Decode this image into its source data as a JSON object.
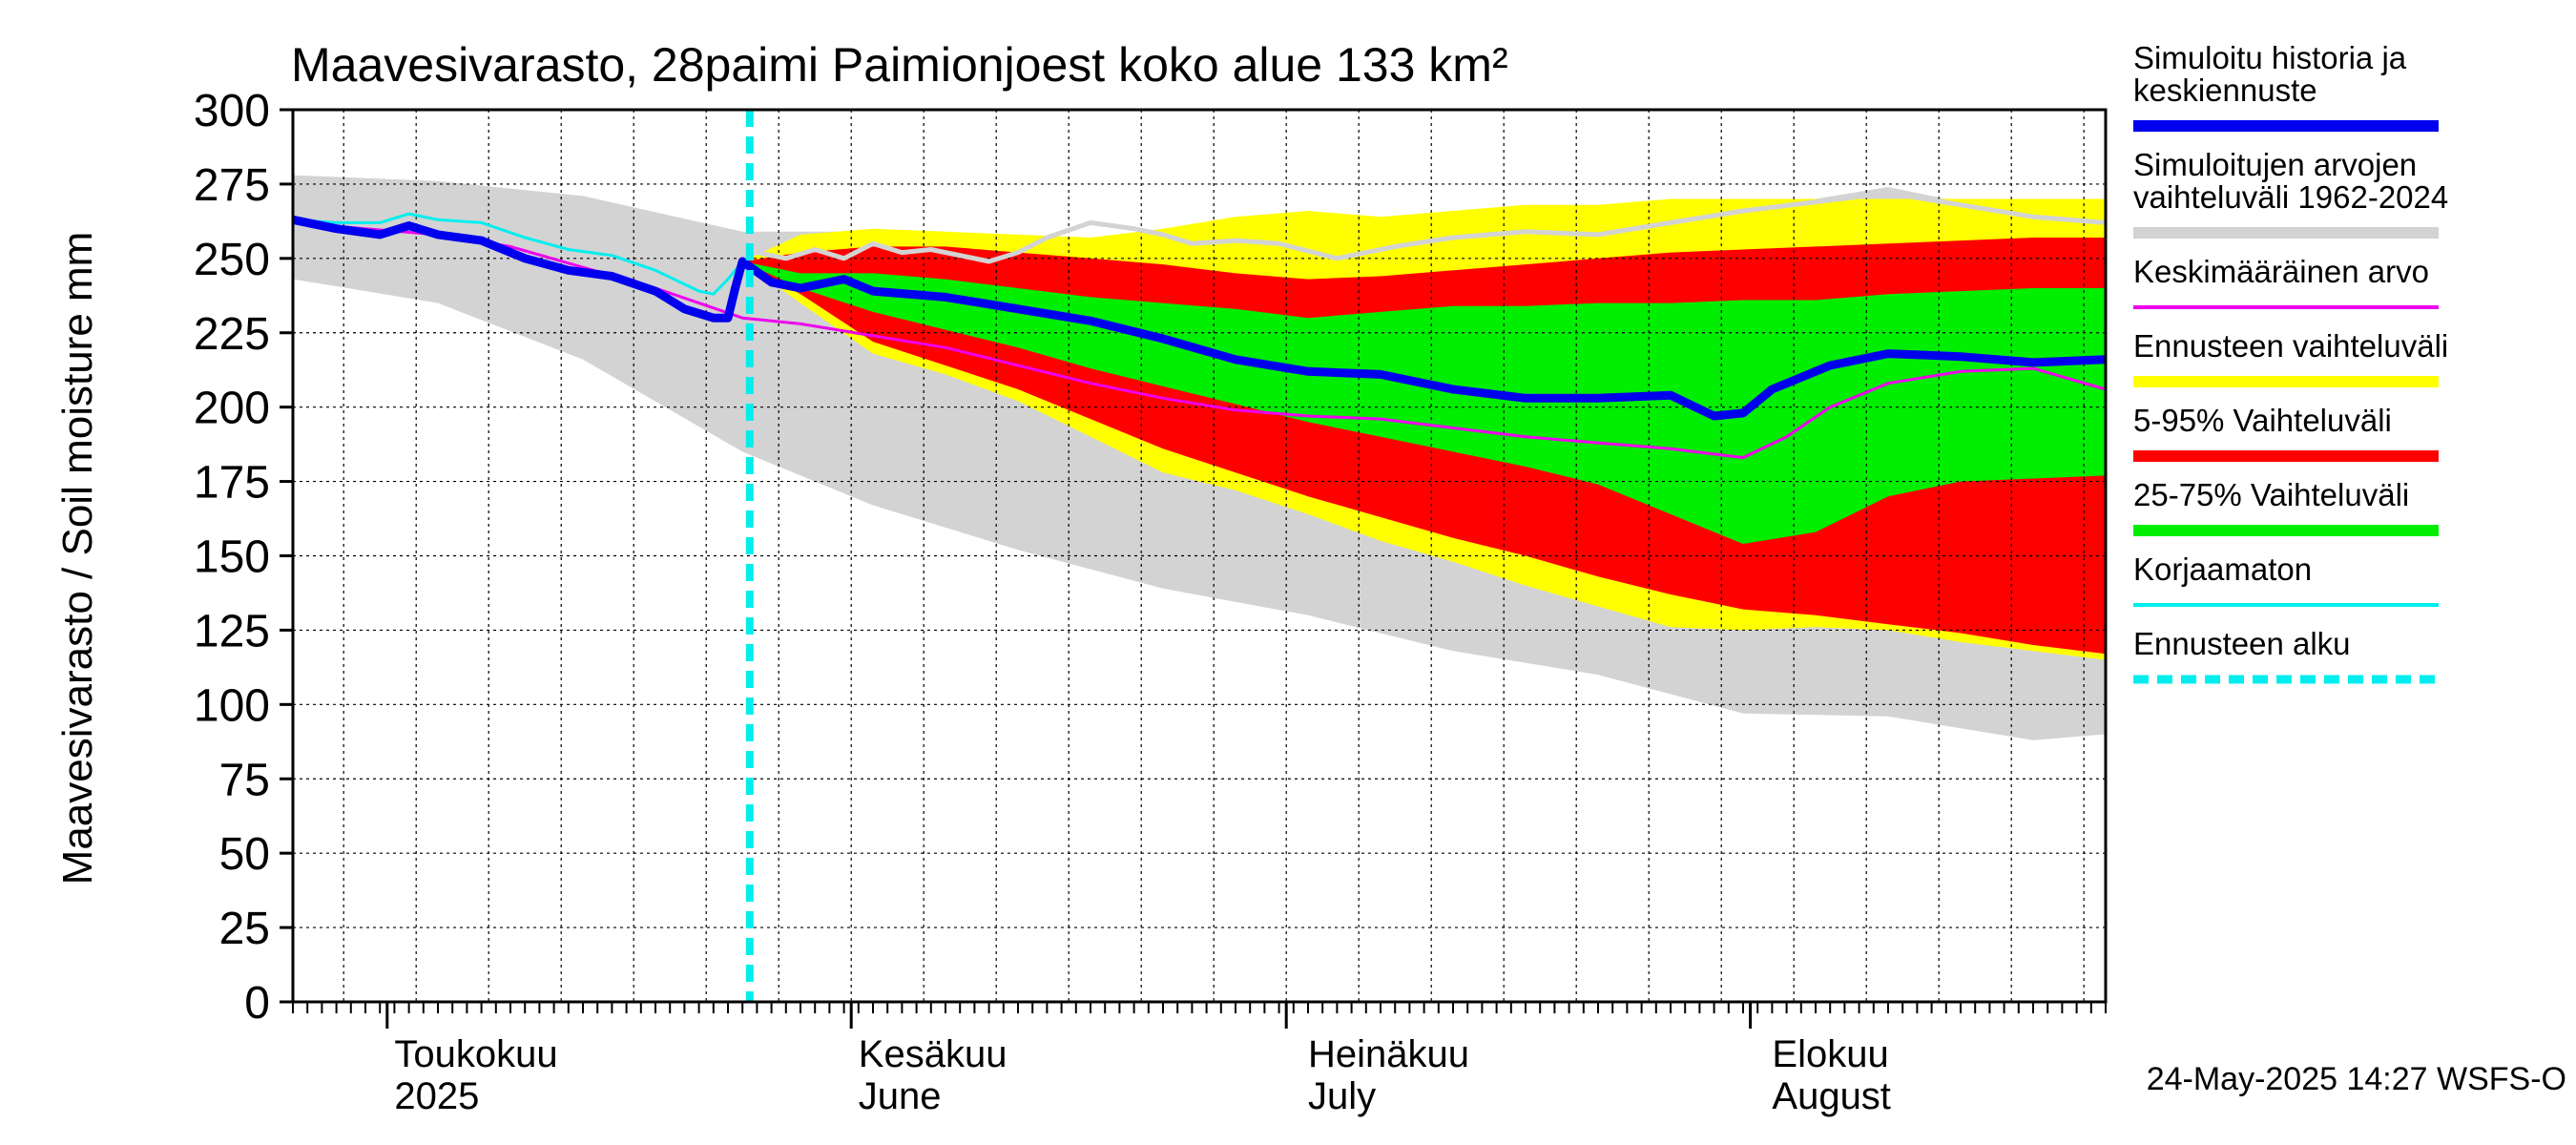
{
  "chart_data": {
    "type": "area",
    "title": "Maavesivarasto, 28paimi Paimionjoest koko alue 133 km²",
    "ylabel": "Maavesivarasto / Soil moisture   mm",
    "xlabel": "",
    "ylim": [
      0,
      300
    ],
    "yticks": [
      "0",
      "25",
      "50",
      "75",
      "100",
      "125",
      "150",
      "175",
      "200",
      "225",
      "250",
      "275",
      "300"
    ],
    "xrange_days": [
      0,
      125
    ],
    "x_unit": "days since 2025-04-01",
    "forecast_start_day": 31.5,
    "months": [
      {
        "day": 7,
        "label1": "Toukokuu",
        "label2": "2025"
      },
      {
        "day": 39,
        "label1": "Kesäkuu",
        "label2": "June"
      },
      {
        "day": 70,
        "label1": "Heinäkuu",
        "label2": "July"
      },
      {
        "day": 102,
        "label1": "Elokuu",
        "label2": "August"
      }
    ],
    "month_boundaries": [
      6.5,
      38.5,
      68.5,
      100.5
    ],
    "footer": "24-May-2025 14:27 WSFS-O",
    "legend": [
      {
        "label": "Simuloitu historia ja keskiennuste",
        "lines": [
          "Simuloitu historia ja",
          "keskiennuste"
        ],
        "color": "#0000ee",
        "style": "thick"
      },
      {
        "label": "Simuloitujen arvojen vaihteluväli 1962-2024",
        "lines": [
          "Simuloitujen arvojen",
          "vaihteluväli 1962-2024"
        ],
        "color": "#d3d3d3",
        "style": "thick"
      },
      {
        "label": "Keskimääräinen arvo",
        "lines": [
          "Keskimääräinen arvo"
        ],
        "color": "#ee00ee",
        "style": "thin"
      },
      {
        "label": "Ennusteen vaihteluväli",
        "lines": [
          "Ennusteen vaihteluväli"
        ],
        "color": "#ffff00",
        "style": "thick"
      },
      {
        "label": "5-95% Vaihteluväli",
        "lines": [
          "5-95% Vaihteluväli"
        ],
        "color": "#ff0000",
        "style": "thick"
      },
      {
        "label": "25-75% Vaihteluväli",
        "lines": [
          "25-75% Vaihteluväli"
        ],
        "color": "#00ee00",
        "style": "thick"
      },
      {
        "label": "Korjaamaton",
        "lines": [
          "Korjaamaton"
        ],
        "color": "#00eeee",
        "style": "thin"
      },
      {
        "label": "Ennusteen alku",
        "lines": [
          "Ennusteen alku"
        ],
        "color": "#00eeee",
        "style": "dashed"
      }
    ],
    "series": [
      {
        "name": "Simuloitujen arvojen vaihteluväli 1962-2024",
        "kind": "band",
        "color": "#d3d3d3",
        "x": [
          0,
          10,
          20,
          31,
          40,
          50,
          60,
          70,
          80,
          90,
          100,
          110,
          120,
          125
        ],
        "lower": [
          243,
          235,
          216,
          185,
          167,
          152,
          139,
          130,
          118,
          110,
          97,
          96,
          88,
          90
        ],
        "upper": [
          278,
          276,
          271,
          259,
          259,
          256,
          254,
          256,
          264,
          256,
          266,
          274,
          264,
          265
        ]
      },
      {
        "name": "Ennusteen vaihteluväli",
        "kind": "band",
        "color": "#ffff00",
        "x": [
          31,
          35,
          40,
          45,
          50,
          55,
          60,
          65,
          70,
          75,
          80,
          85,
          90,
          95,
          100,
          105,
          110,
          115,
          120,
          125
        ],
        "lower": [
          249,
          235,
          218,
          211,
          202,
          190,
          178,
          172,
          164,
          155,
          148,
          140,
          133,
          126,
          125,
          126,
          125,
          121,
          118,
          115
        ],
        "upper": [
          249,
          258,
          260,
          259,
          258,
          257,
          260,
          264,
          266,
          264,
          266,
          268,
          268,
          270,
          270,
          270,
          270,
          270,
          270,
          270
        ]
      },
      {
        "name": "5-95% Vaihteluväli",
        "kind": "band",
        "color": "#ff0000",
        "x": [
          31,
          35,
          40,
          45,
          50,
          55,
          60,
          65,
          70,
          75,
          80,
          85,
          90,
          95,
          100,
          105,
          110,
          115,
          120,
          125
        ],
        "lower": [
          249,
          238,
          222,
          214,
          206,
          196,
          186,
          178,
          170,
          163,
          156,
          150,
          143,
          137,
          132,
          130,
          127,
          124,
          120,
          117
        ],
        "upper": [
          249,
          252,
          254,
          254,
          252,
          250,
          248,
          245,
          243,
          244,
          246,
          248,
          250,
          252,
          253,
          254,
          255,
          256,
          257,
          257
        ]
      },
      {
        "name": "25-75% Vaihteluväli",
        "kind": "band",
        "color": "#00ee00",
        "x": [
          31,
          35,
          40,
          45,
          50,
          55,
          60,
          65,
          70,
          75,
          80,
          85,
          90,
          95,
          100,
          105,
          110,
          115,
          120,
          125
        ],
        "lower": [
          249,
          240,
          232,
          226,
          220,
          213,
          207,
          201,
          195,
          190,
          185,
          180,
          174,
          164,
          154,
          158,
          170,
          175,
          176,
          177
        ],
        "upper": [
          249,
          245,
          245,
          243,
          240,
          237,
          235,
          233,
          230,
          232,
          234,
          234,
          235,
          235,
          236,
          236,
          238,
          239,
          240,
          240
        ]
      },
      {
        "name": "Simuloitujen arvojen yläraja (harmaa viiva)",
        "kind": "line",
        "color": "#d3d3d3",
        "width": 5,
        "x": [
          32,
          34,
          36,
          38,
          40,
          42,
          44,
          46,
          48,
          50,
          52,
          55,
          58,
          60,
          62,
          65,
          68,
          72,
          76,
          80,
          85,
          90,
          95,
          100,
          105,
          110,
          115,
          120,
          125
        ],
        "y": [
          252,
          250,
          253,
          250,
          255,
          252,
          253,
          251,
          249,
          252,
          257,
          262,
          260,
          258,
          255,
          256,
          255,
          250,
          254,
          257,
          259,
          258,
          262,
          266,
          269,
          272,
          268,
          264,
          262
        ]
      },
      {
        "name": "Korjaamaton",
        "kind": "line",
        "color": "#00eeee",
        "width": 3,
        "x": [
          0,
          3,
          6,
          8,
          10,
          13,
          16,
          19,
          22,
          25,
          28,
          29,
          30,
          31
        ],
        "y": [
          263,
          262,
          262,
          265,
          263,
          262,
          257,
          253,
          251,
          246,
          239,
          238,
          243,
          249
        ]
      },
      {
        "name": "Keskimääräinen arvo",
        "kind": "line",
        "color": "#ee00ee",
        "width": 3,
        "x": [
          0,
          5,
          10,
          15,
          20,
          25,
          28,
          31,
          35,
          40,
          45,
          50,
          55,
          60,
          65,
          70,
          75,
          80,
          85,
          90,
          95,
          100,
          103,
          106,
          110,
          115,
          120,
          125
        ],
        "y": [
          262,
          260,
          258,
          254,
          247,
          240,
          235,
          230,
          228,
          224,
          220,
          214,
          208,
          203,
          199,
          197,
          196,
          193,
          190,
          188,
          186,
          183,
          190,
          200,
          208,
          212,
          213,
          206
        ]
      },
      {
        "name": "Simuloitu historia ja keskiennuste",
        "kind": "line",
        "color": "#0000ee",
        "width": 9,
        "x": [
          0,
          3,
          6,
          8,
          10,
          13,
          16,
          19,
          22,
          25,
          27,
          29,
          30,
          30.5,
          31,
          33,
          35,
          38,
          40,
          45,
          50,
          55,
          60,
          65,
          70,
          75,
          80,
          85,
          90,
          95,
          98,
          100,
          102,
          104,
          106,
          110,
          115,
          120,
          125
        ],
        "y": [
          263,
          260,
          258,
          261,
          258,
          256,
          250,
          246,
          244,
          239,
          233,
          230,
          230,
          240,
          249,
          242,
          240,
          243,
          239,
          237,
          233,
          229,
          223,
          216,
          212,
          211,
          206,
          203,
          203,
          204,
          197,
          198,
          206,
          210,
          214,
          218,
          217,
          215,
          216
        ]
      }
    ]
  }
}
